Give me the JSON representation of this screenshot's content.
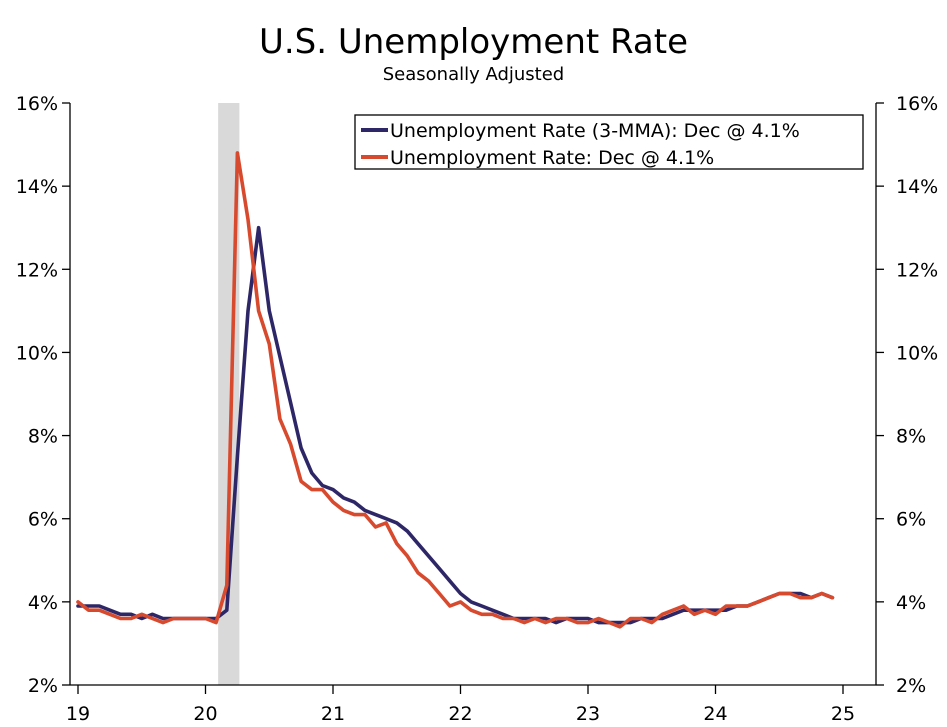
{
  "title": "U.S. Unemployment Rate",
  "subtitle": "Seasonally Adjusted",
  "chart_data": {
    "type": "line",
    "title": "U.S. Unemployment Rate",
    "subtitle": "Seasonally Adjusted",
    "xlabel": "",
    "ylabel": "",
    "x_start": "2019-01",
    "x_ticks": [
      "19",
      "20",
      "21",
      "22",
      "23",
      "24",
      "25"
    ],
    "y_ticks_left": [
      "2%",
      "4%",
      "6%",
      "8%",
      "10%",
      "12%",
      "14%",
      "16%"
    ],
    "y_ticks_right": [
      "2%",
      "4%",
      "6%",
      "8%",
      "10%",
      "12%",
      "14%",
      "16%"
    ],
    "ylim": [
      2,
      16
    ],
    "xlim": [
      "2019-01",
      "2025-01"
    ],
    "grid": false,
    "legend_position": "top-right",
    "recession_shading": {
      "start": "2020-02",
      "end": "2020-04",
      "color": "#d9d9d9"
    },
    "series": [
      {
        "name": "Unemployment Rate (3-MMA): Dec @ 4.1%",
        "color": "#2e2767",
        "values": [
          3.9,
          3.9,
          3.9,
          3.8,
          3.7,
          3.7,
          3.6,
          3.7,
          3.6,
          3.6,
          3.6,
          3.6,
          3.6,
          3.6,
          3.8,
          7.5,
          11.0,
          13.0,
          11.0,
          9.9,
          8.8,
          7.7,
          7.1,
          6.8,
          6.7,
          6.5,
          6.4,
          6.2,
          6.1,
          6.0,
          5.9,
          5.7,
          5.4,
          5.1,
          4.8,
          4.5,
          4.2,
          4.0,
          3.9,
          3.8,
          3.7,
          3.6,
          3.6,
          3.6,
          3.6,
          3.5,
          3.6,
          3.6,
          3.6,
          3.5,
          3.5,
          3.5,
          3.5,
          3.6,
          3.6,
          3.6,
          3.7,
          3.8,
          3.8,
          3.8,
          3.8,
          3.8,
          3.9,
          3.9,
          4.0,
          4.1,
          4.2,
          4.2,
          4.2,
          4.1,
          4.2,
          4.1
        ]
      },
      {
        "name": "Unemployment Rate: Dec @ 4.1%",
        "color": "#d84a2e",
        "values": [
          4.0,
          3.8,
          3.8,
          3.7,
          3.6,
          3.6,
          3.7,
          3.6,
          3.5,
          3.6,
          3.6,
          3.6,
          3.6,
          3.5,
          4.4,
          14.8,
          13.2,
          11.0,
          10.2,
          8.4,
          7.8,
          6.9,
          6.7,
          6.7,
          6.4,
          6.2,
          6.1,
          6.1,
          5.8,
          5.9,
          5.4,
          5.1,
          4.7,
          4.5,
          4.2,
          3.9,
          4.0,
          3.8,
          3.7,
          3.7,
          3.6,
          3.6,
          3.5,
          3.6,
          3.5,
          3.6,
          3.6,
          3.5,
          3.5,
          3.6,
          3.5,
          3.4,
          3.6,
          3.6,
          3.5,
          3.7,
          3.8,
          3.9,
          3.7,
          3.8,
          3.7,
          3.9,
          3.9,
          3.9,
          4.0,
          4.1,
          4.2,
          4.2,
          4.1,
          4.1,
          4.2,
          4.1
        ]
      }
    ]
  }
}
